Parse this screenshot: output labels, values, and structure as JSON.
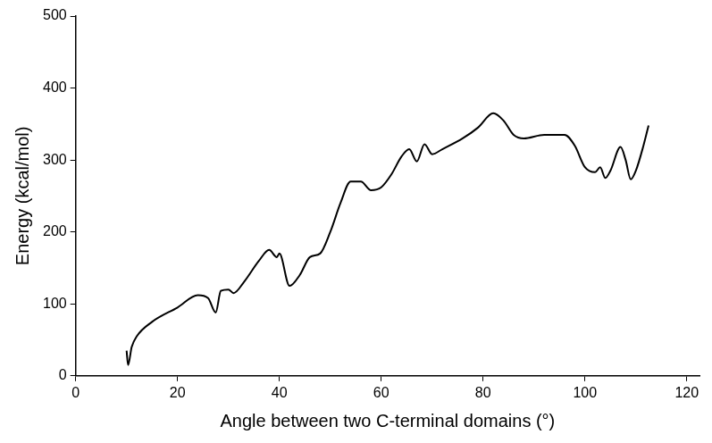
{
  "chart_data": {
    "type": "line",
    "x_label": "Angle between two C-terminal domains (°)",
    "y_label": "Energy (kcal/mol)",
    "x": [
      10.0,
      10.3,
      11,
      12,
      15,
      20,
      24,
      26,
      27.5,
      28.5,
      30,
      31,
      33,
      36,
      38,
      39.5,
      40,
      42,
      44,
      46,
      48,
      50,
      52,
      54,
      56,
      58,
      60,
      62,
      64,
      65.5,
      67,
      68.5,
      70,
      72,
      76,
      79,
      82,
      84,
      86,
      88,
      92,
      96,
      98,
      100,
      102,
      103,
      104,
      105,
      107,
      108,
      109,
      110,
      111.5,
      112.5
    ],
    "values": [
      35,
      15,
      40,
      55,
      75,
      95,
      112,
      108,
      88,
      118,
      120,
      115,
      130,
      160,
      175,
      165,
      170,
      125,
      140,
      165,
      170,
      200,
      240,
      270,
      270,
      258,
      262,
      280,
      305,
      315,
      298,
      322,
      308,
      315,
      330,
      345,
      365,
      355,
      335,
      330,
      335,
      335,
      320,
      290,
      283,
      290,
      275,
      285,
      318,
      300,
      273,
      285,
      320,
      348
    ],
    "color": "#000000",
    "xlim": [
      0,
      122.5
    ],
    "xticks": [
      0,
      20,
      40,
      60,
      80,
      100,
      120
    ],
    "ylim": [
      0,
      500
    ],
    "yticks": [
      0,
      100,
      200,
      300,
      400,
      500
    ],
    "grid": false
  }
}
